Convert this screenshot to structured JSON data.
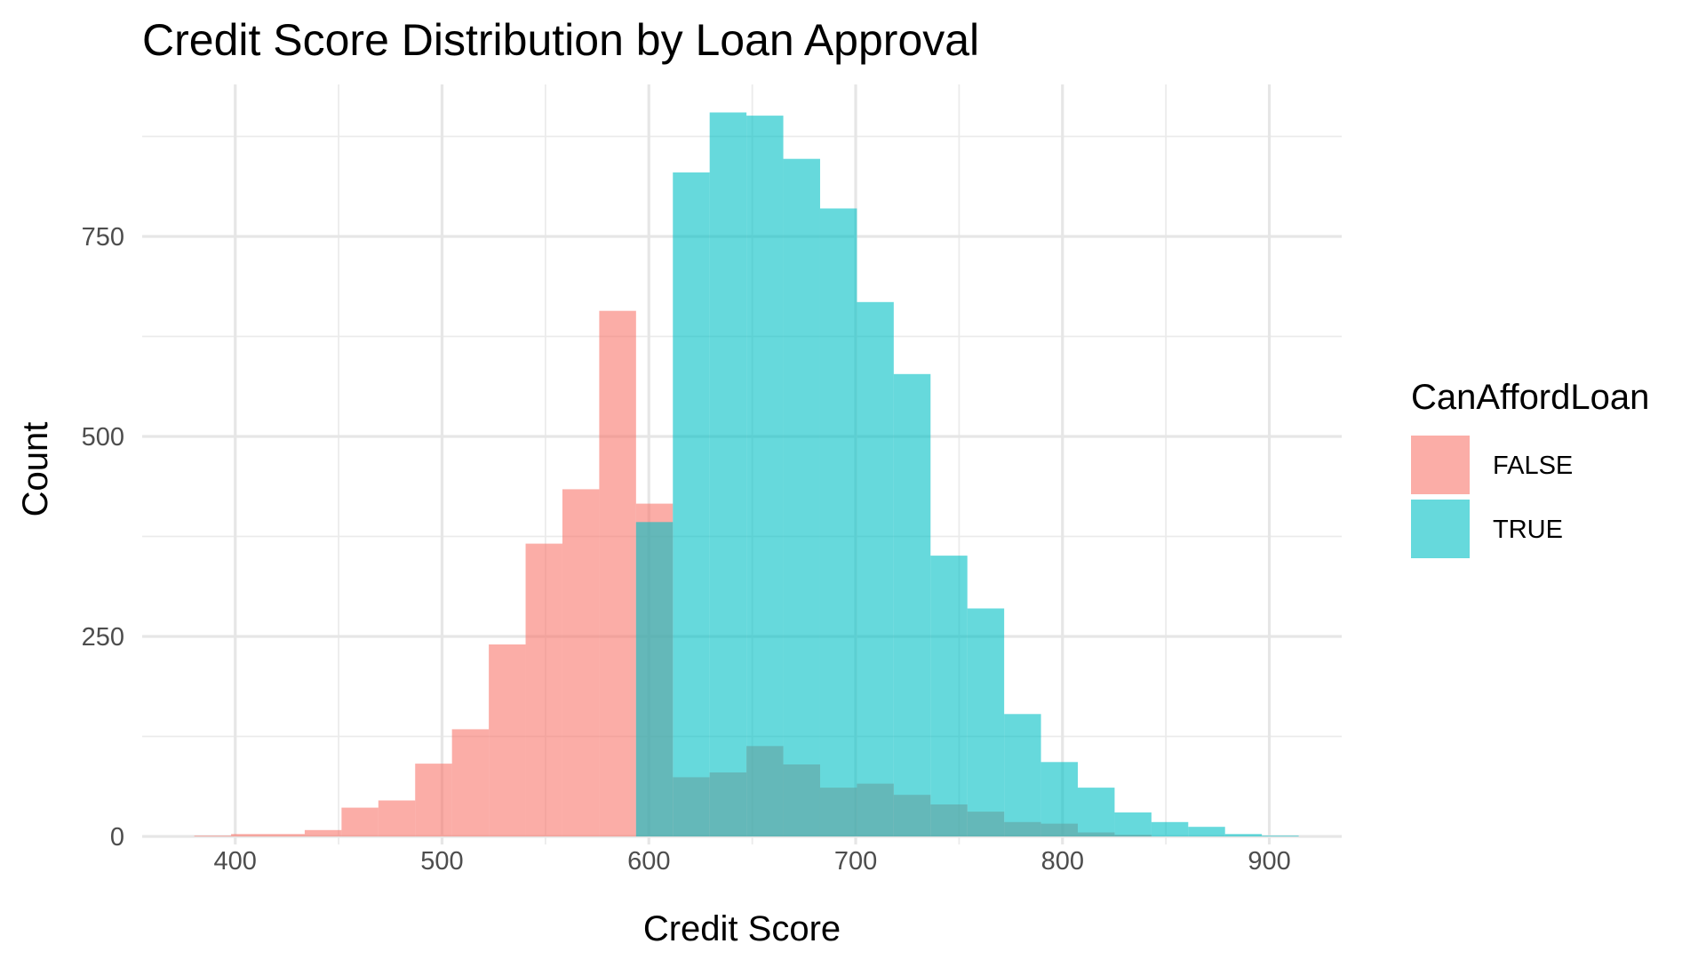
{
  "chart_data": {
    "type": "histogram",
    "title": "Credit Score Distribution by Loan Approval",
    "xlabel": "Credit Score",
    "ylabel": "Count",
    "xlim": [
      355,
      935
    ],
    "ylim": [
      -10,
      940
    ],
    "x_ticks": [
      400,
      500,
      600,
      700,
      800,
      900
    ],
    "y_ticks": [
      0,
      250,
      500,
      750
    ],
    "grid": true,
    "legend_position": "right",
    "legend_title": "CanAffordLoan",
    "bin_width": 17.8,
    "series": [
      {
        "name": "FALSE",
        "color": "#F8766D",
        "bins": [
          {
            "x0": 380.2,
            "x1": 398.0,
            "count": 1
          },
          {
            "x0": 398.0,
            "x1": 415.8,
            "count": 3
          },
          {
            "x0": 415.8,
            "x1": 433.6,
            "count": 3
          },
          {
            "x0": 433.6,
            "x1": 451.4,
            "count": 8
          },
          {
            "x0": 451.4,
            "x1": 469.2,
            "count": 36
          },
          {
            "x0": 469.2,
            "x1": 487.0,
            "count": 45
          },
          {
            "x0": 487.0,
            "x1": 504.8,
            "count": 91
          },
          {
            "x0": 504.8,
            "x1": 522.6,
            "count": 134
          },
          {
            "x0": 522.6,
            "x1": 540.4,
            "count": 240
          },
          {
            "x0": 540.4,
            "x1": 558.2,
            "count": 366
          },
          {
            "x0": 558.2,
            "x1": 576.0,
            "count": 434
          },
          {
            "x0": 576.0,
            "x1": 593.8,
            "count": 657
          },
          {
            "x0": 593.8,
            "x1": 611.6,
            "count": 416
          },
          {
            "x0": 611.6,
            "x1": 629.4,
            "count": 74
          },
          {
            "x0": 629.4,
            "x1": 647.2,
            "count": 80
          },
          {
            "x0": 647.2,
            "x1": 665.0,
            "count": 113
          },
          {
            "x0": 665.0,
            "x1": 682.8,
            "count": 90
          },
          {
            "x0": 682.8,
            "x1": 700.6,
            "count": 61
          },
          {
            "x0": 700.6,
            "x1": 718.4,
            "count": 66
          },
          {
            "x0": 718.4,
            "x1": 736.2,
            "count": 52
          },
          {
            "x0": 736.2,
            "x1": 754.0,
            "count": 40
          },
          {
            "x0": 754.0,
            "x1": 771.8,
            "count": 31
          },
          {
            "x0": 771.8,
            "x1": 789.6,
            "count": 18
          },
          {
            "x0": 789.6,
            "x1": 807.4,
            "count": 16
          },
          {
            "x0": 807.4,
            "x1": 825.2,
            "count": 5
          },
          {
            "x0": 825.2,
            "x1": 843.0,
            "count": 2
          }
        ]
      },
      {
        "name": "TRUE",
        "color": "#00BFC4",
        "bins": [
          {
            "x0": 593.8,
            "x1": 611.6,
            "count": 393
          },
          {
            "x0": 611.6,
            "x1": 629.4,
            "count": 830
          },
          {
            "x0": 629.4,
            "x1": 647.2,
            "count": 905
          },
          {
            "x0": 647.2,
            "x1": 665.0,
            "count": 901
          },
          {
            "x0": 665.0,
            "x1": 682.8,
            "count": 847
          },
          {
            "x0": 682.8,
            "x1": 700.6,
            "count": 785
          },
          {
            "x0": 700.6,
            "x1": 718.4,
            "count": 668
          },
          {
            "x0": 718.4,
            "x1": 736.2,
            "count": 578
          },
          {
            "x0": 736.2,
            "x1": 754.0,
            "count": 351
          },
          {
            "x0": 754.0,
            "x1": 771.8,
            "count": 285
          },
          {
            "x0": 771.8,
            "x1": 789.6,
            "count": 153
          },
          {
            "x0": 789.6,
            "x1": 807.4,
            "count": 93
          },
          {
            "x0": 807.4,
            "x1": 825.2,
            "count": 61
          },
          {
            "x0": 825.2,
            "x1": 843.0,
            "count": 30
          },
          {
            "x0": 843.0,
            "x1": 860.8,
            "count": 18
          },
          {
            "x0": 860.8,
            "x1": 878.6,
            "count": 12
          },
          {
            "x0": 878.6,
            "x1": 896.4,
            "count": 3
          },
          {
            "x0": 896.4,
            "x1": 914.2,
            "count": 1
          }
        ]
      }
    ]
  }
}
